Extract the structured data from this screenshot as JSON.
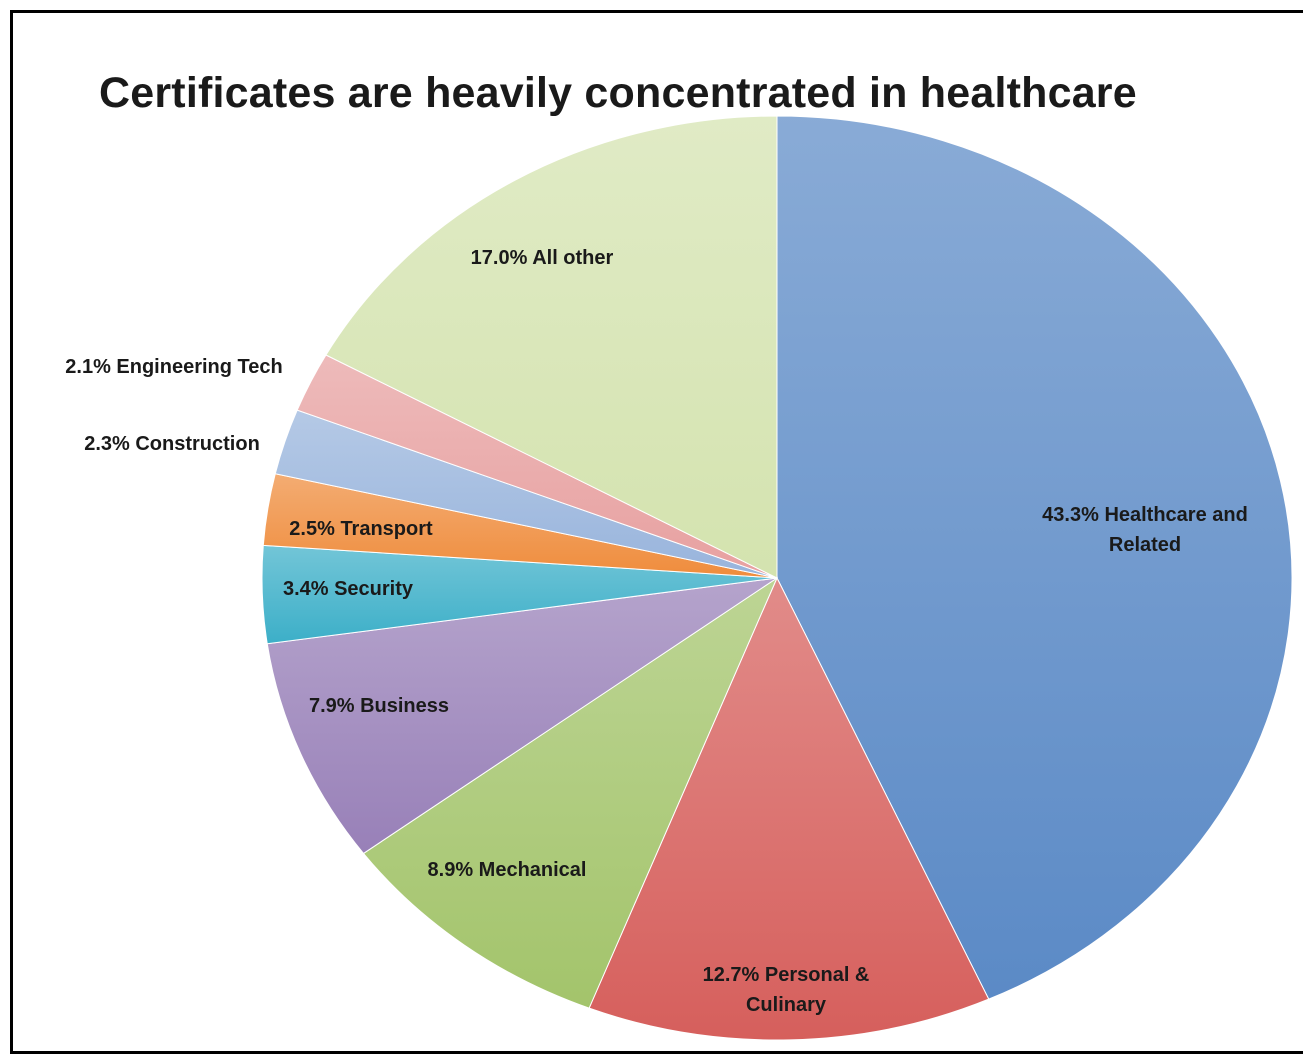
{
  "chart_data": {
    "type": "pie",
    "title": "Certificates are heavily concentrated in healthcare",
    "slices": [
      {
        "name": "Healthcare and Related",
        "value": 43.3,
        "label_lines": [
          "43.3% Healthcare and",
          "Related"
        ],
        "color": "#5b8ac6"
      },
      {
        "name": "Personal & Culinary",
        "value": 12.7,
        "label_lines": [
          "12.7% Personal &",
          "Culinary"
        ],
        "color": "#d65f5c"
      },
      {
        "name": "Mechanical",
        "value": 8.9,
        "label_lines": [
          "8.9% Mechanical"
        ],
        "color": "#a3c46b"
      },
      {
        "name": "Business",
        "value": 7.9,
        "label_lines": [
          "7.9% Business"
        ],
        "color": "#9880b8"
      },
      {
        "name": "Security",
        "value": 3.4,
        "label_lines": [
          "3.4% Security"
        ],
        "color": "#3cafc8"
      },
      {
        "name": "Transport",
        "value": 2.5,
        "label_lines": [
          "2.5% Transport"
        ],
        "color": "#ef8c3c"
      },
      {
        "name": "Construction",
        "value": 2.3,
        "label_lines": [
          "2.3% Construction"
        ],
        "color": "#98b4dc"
      },
      {
        "name": "Engineering Tech",
        "value": 2.1,
        "label_lines": [
          "2.1% Engineering Tech"
        ],
        "color": "#e7a0a0"
      },
      {
        "name": "All other",
        "value": 17.0,
        "label_lines": [
          "17.0% All other"
        ],
        "color": "#d4e3af"
      }
    ]
  }
}
